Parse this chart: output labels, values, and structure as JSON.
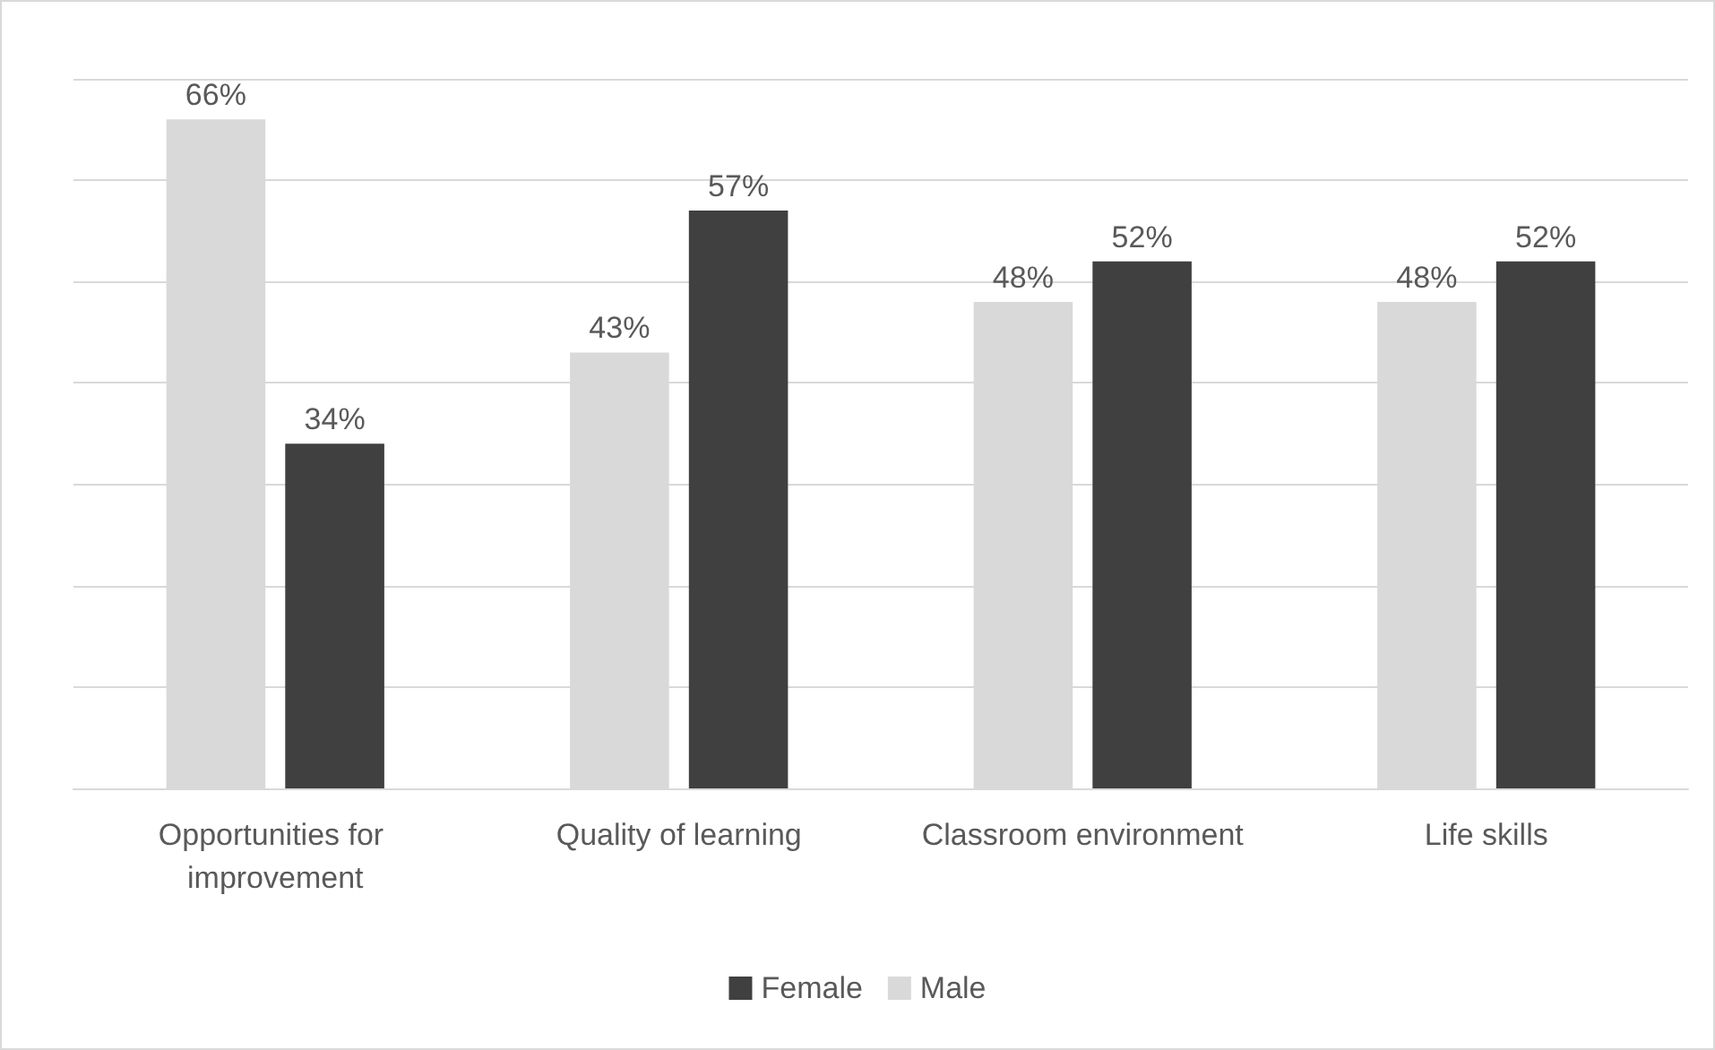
{
  "chart_data": {
    "type": "bar",
    "categories": [
      "Opportunities for improvement",
      "Quality of learning",
      "Classroom environment",
      "Life skills"
    ],
    "series": [
      {
        "name": "Male",
        "color": "#d9d9d9",
        "values": [
          66,
          43,
          48,
          48
        ],
        "value_labels": [
          "66%",
          "43%",
          "48%",
          "48%"
        ]
      },
      {
        "name": "Female",
        "color": "#404040",
        "values": [
          34,
          57,
          52,
          52
        ],
        "value_labels": [
          "34%",
          "57%",
          "52%",
          "52%"
        ]
      }
    ],
    "ylim": [
      0,
      70
    ],
    "yticks": [
      {
        "value": 0,
        "label": null
      },
      {
        "value": 10,
        "label": null
      },
      {
        "value": 20,
        "label": null
      },
      {
        "value": 30,
        "label": null
      },
      {
        "value": 40,
        "label": null
      },
      {
        "value": 50,
        "label": null
      },
      {
        "value": 60,
        "label": null
      },
      {
        "value": 70,
        "label": null
      }
    ],
    "grid": "y",
    "legend": "bottom",
    "tick_labels": "x"
  }
}
